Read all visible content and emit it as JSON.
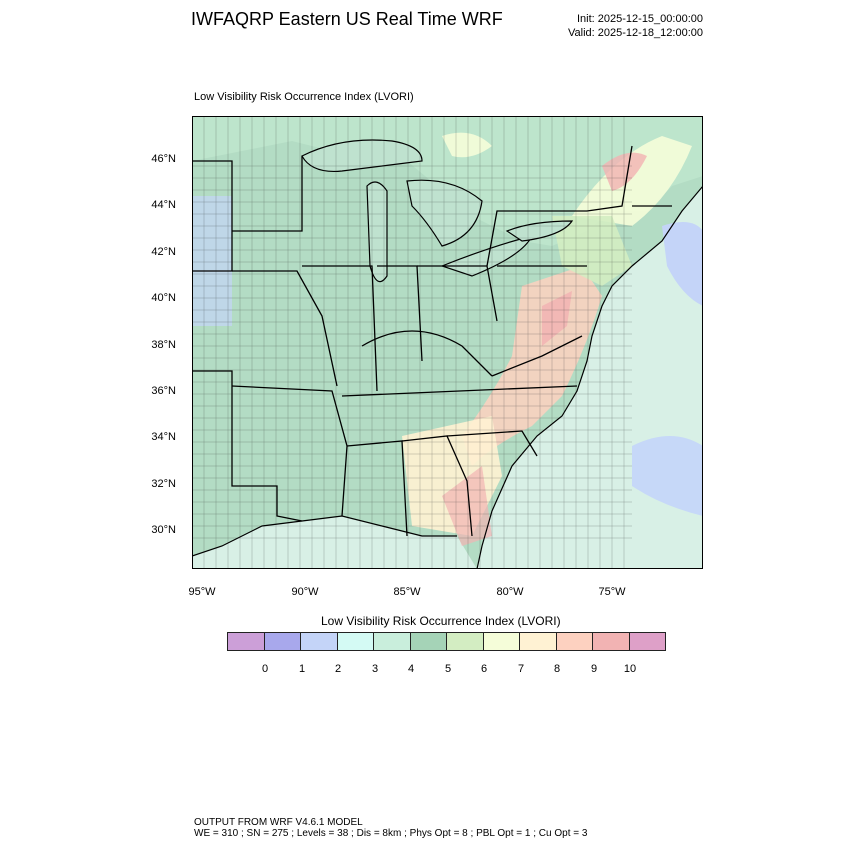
{
  "header": {
    "title": "IWFAQRP Eastern US Real Time WRF",
    "init": "Init: 2025-12-15_00:00:00",
    "valid": "Valid: 2025-12-18_12:00:00"
  },
  "map": {
    "subtitle": "Low Visibility Risk Occurrence Index   (LVORI)",
    "lat_labels": [
      "46°N",
      "44°N",
      "42°N",
      "40°N",
      "38°N",
      "36°N",
      "34°N",
      "32°N",
      "30°N"
    ],
    "lon_labels": [
      "95°W",
      "90°W",
      "85°W",
      "80°W",
      "75°W"
    ],
    "colors": {
      "ocean": "#d8f0e6",
      "land_base": "#b3dcc4",
      "lakes": "#bfe2cf",
      "borders": "#000000"
    }
  },
  "colorbar": {
    "title": "Low Visibility Risk Occurrence Index  (LVORI)",
    "colors": [
      "#cc9fd8",
      "#a8a8ec",
      "#c4d4f8",
      "#d4faf4",
      "#c9eedc",
      "#a5d3b7",
      "#d3edc2",
      "#f5fdd9",
      "#fff2d3",
      "#fdd1c0",
      "#f2b3b3",
      "#dea0c8"
    ],
    "labels": [
      "0",
      "1",
      "2",
      "3",
      "4",
      "5",
      "6",
      "7",
      "8",
      "9",
      "10"
    ]
  },
  "footer": {
    "line1": "OUTPUT FROM WRF V4.6.1 MODEL",
    "line2": "WE = 310 ; SN = 275 ; Levels = 38 ; Dis = 8km ; Phys Opt = 8 ; PBL Opt = 1 ; Cu Opt = 3"
  }
}
